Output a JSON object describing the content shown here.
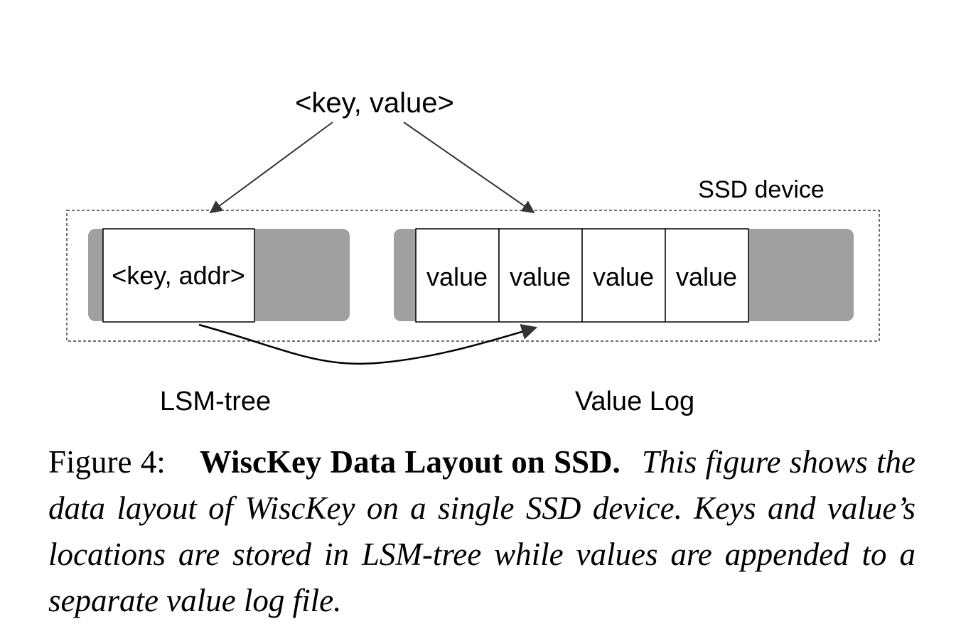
{
  "diagram": {
    "input_label": "<key, value>",
    "device_label": "SSD device",
    "lsm_entry": "<key, addr>",
    "values": [
      "value",
      "value",
      "value",
      "value"
    ],
    "lsm_label": "LSM-tree",
    "vlog_label": "Value Log",
    "colors": {
      "storage_fill": "#a0a0a0",
      "box_fill": "#ffffff",
      "stroke": "#000000",
      "arrow": "#333333"
    }
  },
  "caption": {
    "number": "Figure 4:",
    "title": "WiscKey Data Layout on SSD.",
    "body": "This figure shows the data layout of WiscKey on a single SSD device. Keys and value’s locations are stored in LSM-tree while values are appended to a separate value log file."
  }
}
